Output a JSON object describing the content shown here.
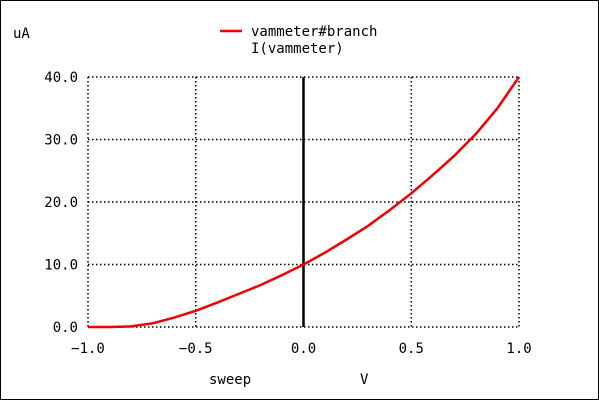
{
  "chart_data": {
    "type": "line",
    "y_unit": "uA",
    "xlabel": "sweep",
    "x_unit": "V",
    "xlim": [
      -1.0,
      1.0
    ],
    "ylim": [
      0.0,
      40.0
    ],
    "x_ticks": [
      "−1.0",
      "−0.5",
      "0.0",
      "0.5",
      "1.0"
    ],
    "y_ticks": [
      "0.0",
      "10.0",
      "20.0",
      "30.0",
      "40.0"
    ],
    "grid": true,
    "legend": {
      "placement": "top-center",
      "name": "vammeter#branch",
      "subtitle": "I(vammeter)"
    },
    "series": [
      {
        "name": "vammeter#branch",
        "color": "#ee0000",
        "x": [
          -1.0,
          -0.9,
          -0.8,
          -0.7,
          -0.6,
          -0.5,
          -0.4,
          -0.3,
          -0.2,
          -0.1,
          0.0,
          0.1,
          0.2,
          0.3,
          0.4,
          0.5,
          0.6,
          0.7,
          0.8,
          0.9,
          1.0
        ],
        "y": [
          0.0,
          0.0,
          0.1,
          0.6,
          1.5,
          2.6,
          3.9,
          5.3,
          6.7,
          8.3,
          10.0,
          11.9,
          14.0,
          16.2,
          18.7,
          21.4,
          24.3,
          27.4,
          30.9,
          35.0,
          40.0
        ]
      }
    ],
    "zero_line_color": "#000000",
    "grid_color": "#000000"
  }
}
